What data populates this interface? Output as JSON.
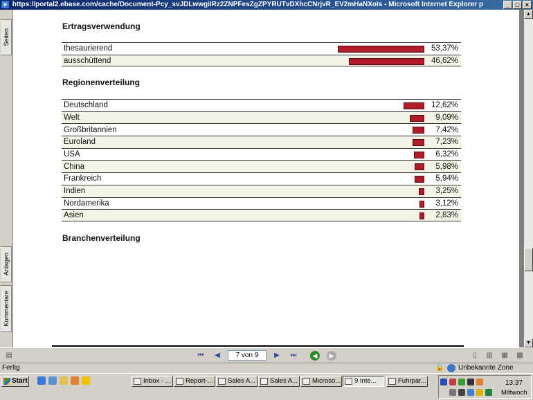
{
  "window": {
    "title": "https://portal2.ebase.com/cache/Document-Pcy_svJDLwwgiIRz2ZNPFesZgZPYRUTvDXhcCNrjvR_EV2mHaNXoIs - Microsoft Internet Explorer p",
    "minimize": "_",
    "maximize": "□",
    "close": "×"
  },
  "side_tabs": {
    "pages": "Seiten",
    "attachments": "Anlagen",
    "comments": "Kommentare"
  },
  "sections": {
    "ertrag": {
      "title": "Ertragsverwendung",
      "rows": [
        {
          "label": "thesaurierend",
          "value": "53,37%",
          "fraction": 0.5337
        },
        {
          "label": "ausschüttend",
          "value": "46,62%",
          "fraction": 0.4662
        }
      ]
    },
    "region": {
      "title": "Regionenverteilung",
      "rows": [
        {
          "label": "Deutschland",
          "value": "12,62%",
          "fraction": 0.1262
        },
        {
          "label": "Welt",
          "value": "9,09%",
          "fraction": 0.0909
        },
        {
          "label": "Großbritannien",
          "value": "7,42%",
          "fraction": 0.0742
        },
        {
          "label": "Euroland",
          "value": "7,23%",
          "fraction": 0.0723
        },
        {
          "label": "USA",
          "value": "6,32%",
          "fraction": 0.0632
        },
        {
          "label": "China",
          "value": "5,98%",
          "fraction": 0.0598
        },
        {
          "label": "Frankreich",
          "value": "5,94%",
          "fraction": 0.0594
        },
        {
          "label": "Indien",
          "value": "3,25%",
          "fraction": 0.0325
        },
        {
          "label": "Nordamerika",
          "value": "3,12%",
          "fraction": 0.0312
        },
        {
          "label": "Asien",
          "value": "2,83%",
          "fraction": 0.0283
        }
      ]
    },
    "branchen": {
      "title": "Branchenverteilung"
    }
  },
  "pdf_nav": {
    "page_indicator": "7 von 9",
    "icons": [
      "first-page-icon",
      "prev-page-icon",
      "next-page-icon",
      "last-page-icon",
      "back-icon",
      "forward-icon"
    ]
  },
  "status": {
    "text": "Fertig",
    "zone": "Unbekannte Zone"
  },
  "taskbar": {
    "start": "Start",
    "tasks": [
      {
        "label": "Inbox - ...",
        "active": false
      },
      {
        "label": "Report-...",
        "active": false
      },
      {
        "label": "Sales A...",
        "active": false
      },
      {
        "label": "Sales A...",
        "active": false
      },
      {
        "label": "Microso...",
        "active": false
      },
      {
        "label": "9 Inte...",
        "active": true
      },
      {
        "label": "Fuhrpar...",
        "active": false
      }
    ],
    "clock_time": "13:37",
    "clock_day": "Mittwoch"
  },
  "colors": {
    "bar": "#b01c2a",
    "titlebar": "#0a246a"
  }
}
